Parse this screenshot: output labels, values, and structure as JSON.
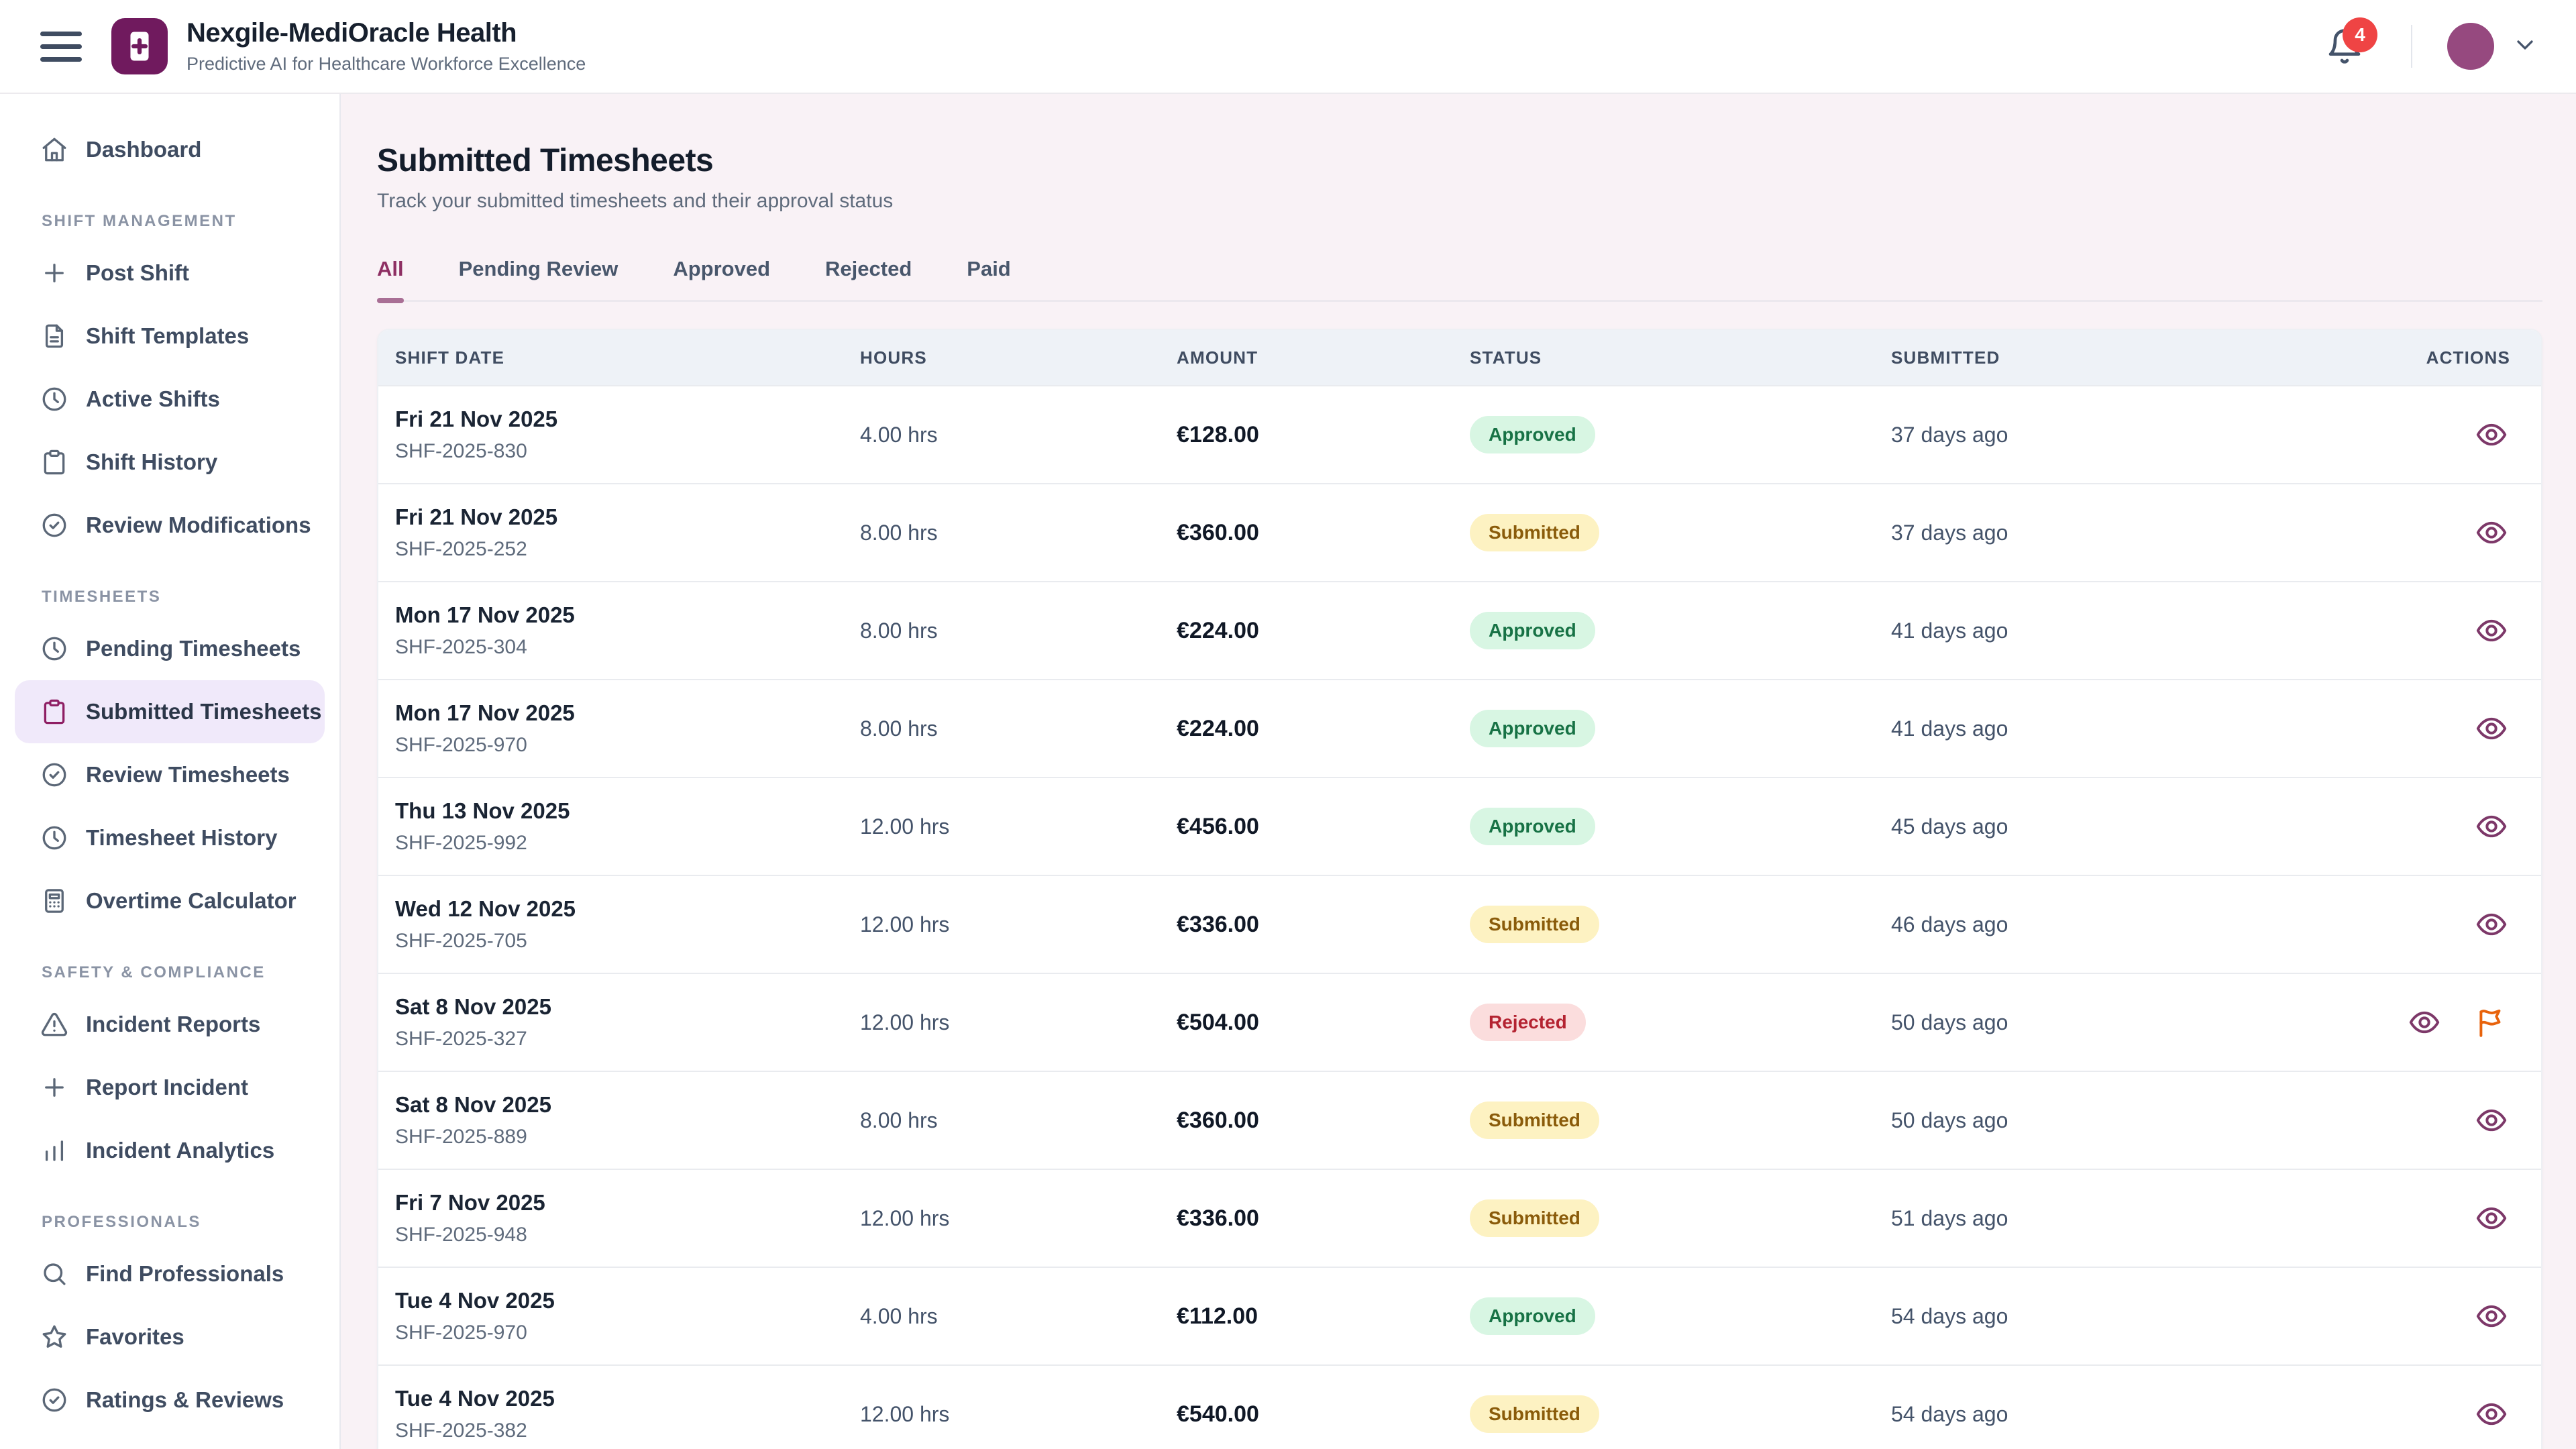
{
  "header": {
    "app_name": "Nexgile-MediOracle Health",
    "tagline": "Predictive AI for Healthcare Workforce Excellence",
    "notification_count": "4"
  },
  "sidebar": {
    "sections": [
      {
        "label": "",
        "items": [
          {
            "label": "Dashboard",
            "icon": "home",
            "active": false
          }
        ]
      },
      {
        "label": "SHIFT MANAGEMENT",
        "items": [
          {
            "label": "Post Shift",
            "icon": "plus",
            "active": false
          },
          {
            "label": "Shift Templates",
            "icon": "file-text",
            "active": false
          },
          {
            "label": "Active Shifts",
            "icon": "clock",
            "active": false
          },
          {
            "label": "Shift History",
            "icon": "clipboard",
            "active": false
          },
          {
            "label": "Review Modifications",
            "icon": "check-circle",
            "active": false
          }
        ]
      },
      {
        "label": "TIMESHEETS",
        "items": [
          {
            "label": "Pending Timesheets",
            "icon": "clock",
            "active": false
          },
          {
            "label": "Submitted Timesheets",
            "icon": "clipboard",
            "active": true
          },
          {
            "label": "Review Timesheets",
            "icon": "check-circle",
            "active": false
          },
          {
            "label": "Timesheet History",
            "icon": "clock",
            "active": false
          },
          {
            "label": "Overtime Calculator",
            "icon": "calculator",
            "active": false
          }
        ]
      },
      {
        "label": "SAFETY & COMPLIANCE",
        "items": [
          {
            "label": "Incident Reports",
            "icon": "alert-triangle",
            "active": false
          },
          {
            "label": "Report Incident",
            "icon": "plus",
            "active": false
          },
          {
            "label": "Incident Analytics",
            "icon": "bar-chart",
            "active": false
          }
        ]
      },
      {
        "label": "PROFESSIONALS",
        "items": [
          {
            "label": "Find Professionals",
            "icon": "search",
            "active": false
          },
          {
            "label": "Favorites",
            "icon": "star",
            "active": false
          },
          {
            "label": "Ratings & Reviews",
            "icon": "check-circle",
            "active": false
          }
        ]
      }
    ]
  },
  "page": {
    "title": "Submitted Timesheets",
    "subtitle": "Track your submitted timesheets and their approval status",
    "tabs": [
      {
        "label": "All",
        "active": true
      },
      {
        "label": "Pending Review",
        "active": false
      },
      {
        "label": "Approved",
        "active": false
      },
      {
        "label": "Rejected",
        "active": false
      },
      {
        "label": "Paid",
        "active": false
      }
    ]
  },
  "table": {
    "columns": [
      "SHIFT DATE",
      "HOURS",
      "AMOUNT",
      "STATUS",
      "SUBMITTED",
      "ACTIONS"
    ],
    "rows": [
      {
        "date": "Fri 21 Nov 2025",
        "id": "SHF-2025-830",
        "hours": "4.00 hrs",
        "amount": "€128.00",
        "status": "Approved",
        "status_key": "approved",
        "submitted": "37 days ago",
        "actions": [
          "view"
        ]
      },
      {
        "date": "Fri 21 Nov 2025",
        "id": "SHF-2025-252",
        "hours": "8.00 hrs",
        "amount": "€360.00",
        "status": "Submitted",
        "status_key": "submitted",
        "submitted": "37 days ago",
        "actions": [
          "view"
        ]
      },
      {
        "date": "Mon 17 Nov 2025",
        "id": "SHF-2025-304",
        "hours": "8.00 hrs",
        "amount": "€224.00",
        "status": "Approved",
        "status_key": "approved",
        "submitted": "41 days ago",
        "actions": [
          "view"
        ]
      },
      {
        "date": "Mon 17 Nov 2025",
        "id": "SHF-2025-970",
        "hours": "8.00 hrs",
        "amount": "€224.00",
        "status": "Approved",
        "status_key": "approved",
        "submitted": "41 days ago",
        "actions": [
          "view"
        ]
      },
      {
        "date": "Thu 13 Nov 2025",
        "id": "SHF-2025-992",
        "hours": "12.00 hrs",
        "amount": "€456.00",
        "status": "Approved",
        "status_key": "approved",
        "submitted": "45 days ago",
        "actions": [
          "view"
        ]
      },
      {
        "date": "Wed 12 Nov 2025",
        "id": "SHF-2025-705",
        "hours": "12.00 hrs",
        "amount": "€336.00",
        "status": "Submitted",
        "status_key": "submitted",
        "submitted": "46 days ago",
        "actions": [
          "view"
        ]
      },
      {
        "date": "Sat 8 Nov 2025",
        "id": "SHF-2025-327",
        "hours": "12.00 hrs",
        "amount": "€504.00",
        "status": "Rejected",
        "status_key": "rejected",
        "submitted": "50 days ago",
        "actions": [
          "view",
          "flag"
        ]
      },
      {
        "date": "Sat 8 Nov 2025",
        "id": "SHF-2025-889",
        "hours": "8.00 hrs",
        "amount": "€360.00",
        "status": "Submitted",
        "status_key": "submitted",
        "submitted": "50 days ago",
        "actions": [
          "view"
        ]
      },
      {
        "date": "Fri 7 Nov 2025",
        "id": "SHF-2025-948",
        "hours": "12.00 hrs",
        "amount": "€336.00",
        "status": "Submitted",
        "status_key": "submitted",
        "submitted": "51 days ago",
        "actions": [
          "view"
        ]
      },
      {
        "date": "Tue 4 Nov 2025",
        "id": "SHF-2025-970",
        "hours": "4.00 hrs",
        "amount": "€112.00",
        "status": "Approved",
        "status_key": "approved",
        "submitted": "54 days ago",
        "actions": [
          "view"
        ]
      },
      {
        "date": "Tue 4 Nov 2025",
        "id": "SHF-2025-382",
        "hours": "12.00 hrs",
        "amount": "€540.00",
        "status": "Submitted",
        "status_key": "submitted",
        "submitted": "54 days ago",
        "actions": [
          "view"
        ]
      }
    ]
  },
  "colors": {
    "brand_purple": "#701a5e",
    "avatar_purple": "#96497f",
    "accent_tab": "#8e2f63",
    "tab_indicator": "#a96f95",
    "active_item_bg": "#f0e9fa",
    "active_item_icon": "#8e1e63",
    "page_bg": "#f9f2f6",
    "table_header_bg": "#eef2f7",
    "approved_bg": "#d8f6e3",
    "approved_text": "#177245",
    "submitted_bg": "#fdf2c2",
    "submitted_text": "#8a5b0a",
    "rejected_bg": "#fbdddd",
    "rejected_text": "#b42331",
    "eye_purple": "#7d3869",
    "flag_orange": "#e8630c",
    "notification_red": "#ef4444"
  }
}
